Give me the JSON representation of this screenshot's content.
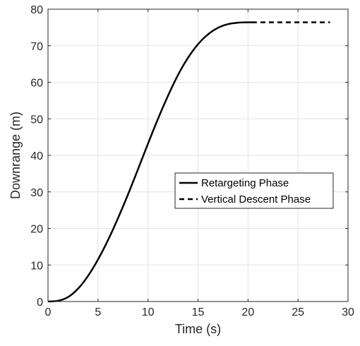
{
  "chart_data": {
    "type": "line",
    "xlabel": "Time (s)",
    "ylabel": "Downrange (m)",
    "xlim": [
      0,
      30
    ],
    "ylim": [
      0,
      80
    ],
    "xticks": [
      0,
      5,
      10,
      15,
      20,
      25,
      30
    ],
    "yticks": [
      0,
      10,
      20,
      30,
      40,
      50,
      60,
      70,
      80
    ],
    "grid": true,
    "legend_position": "center-right",
    "series": [
      {
        "name": "Retargeting Phase",
        "style": "solid",
        "color": "#000000",
        "x": [
          0,
          1,
          2,
          3,
          4,
          5,
          6,
          7,
          8,
          9,
          10,
          11,
          12,
          13,
          14,
          15,
          16,
          17,
          18,
          19,
          20,
          20.4
        ],
        "y": [
          0,
          0.2,
          1.2,
          3.5,
          7.0,
          11.5,
          16.8,
          22.8,
          29.3,
          36.2,
          43.2,
          50.0,
          56.3,
          62.0,
          66.7,
          70.4,
          73.1,
          74.9,
          75.9,
          76.3,
          76.4,
          76.4
        ]
      },
      {
        "name": "Vertical Descent Phase",
        "style": "dashed",
        "color": "#000000",
        "x": [
          20.4,
          28.2
        ],
        "y": [
          76.4,
          76.4
        ]
      }
    ]
  }
}
